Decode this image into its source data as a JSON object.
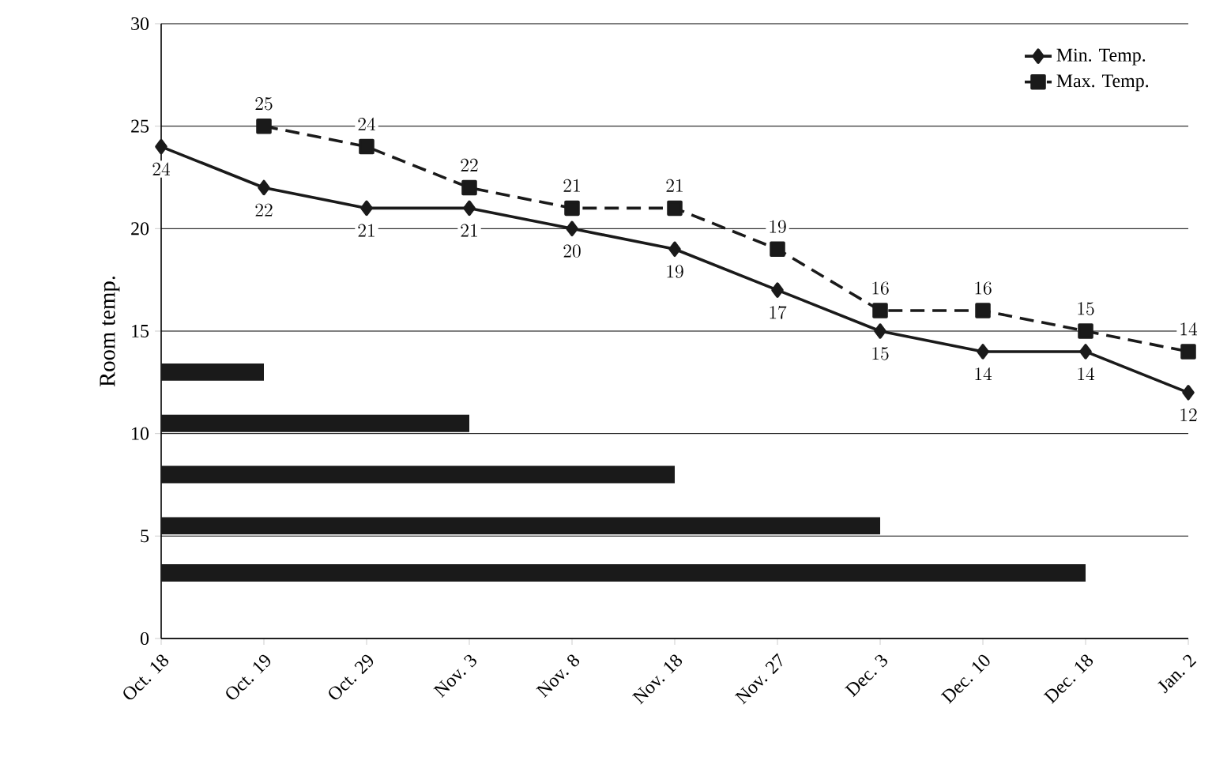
{
  "chart_data": {
    "type": "line",
    "ylabel": "Room temp.",
    "categories": [
      "Oct. 18",
      "Oct. 19",
      "Oct. 29",
      "Nov. 3",
      "Nov. 8",
      "Nov. 18",
      "Nov. 27",
      "Dec. 3",
      "Dec. 10",
      "Dec. 18",
      "Jan. 2"
    ],
    "series": [
      {
        "name": "Min. Temp.",
        "color": "#1a1a1a",
        "marker": "diamond",
        "line_style": "solid",
        "data_labels": true,
        "values": [
          24,
          22,
          21,
          21,
          20,
          19,
          17,
          15,
          14,
          14,
          12
        ]
      },
      {
        "name": "Max. Temp.",
        "color": "#1a1a1a",
        "marker": "square",
        "line_style": "dashed",
        "data_labels": true,
        "values": [
          null,
          25,
          24,
          22,
          21,
          21,
          19,
          16,
          16,
          15,
          14
        ]
      },
      {
        "marker": "none",
        "color": "#1a1a1a",
        "values": [
          13,
          13,
          null,
          null,
          null,
          null,
          null,
          null,
          null,
          null,
          null
        ]
      },
      {
        "marker": "none",
        "color": "#1a1a1a",
        "values": [
          10.5,
          10.5,
          10.5,
          10.5,
          null,
          null,
          null,
          null,
          null,
          null,
          null
        ]
      },
      {
        "marker": "none",
        "color": "#1a1a1a",
        "values": [
          8,
          8,
          8,
          8,
          8,
          8,
          null,
          null,
          null,
          null,
          null
        ]
      },
      {
        "marker": "none",
        "color": "#1a1a1a",
        "values": [
          5.5,
          5.5,
          5.5,
          5.5,
          5.5,
          5.5,
          5.5,
          5.5,
          null,
          null,
          null
        ]
      },
      {
        "marker": "none",
        "color": "#1a1a1a",
        "values": [
          3.2,
          3.2,
          3.2,
          3.2,
          3.2,
          3.2,
          3.2,
          3.2,
          3.2,
          3.2,
          null
        ]
      }
    ],
    "ylim": [
      0,
      30
    ],
    "yticks": [
      0,
      5,
      10,
      15,
      20,
      25,
      30
    ],
    "grid": "y",
    "legend": "top right"
  }
}
